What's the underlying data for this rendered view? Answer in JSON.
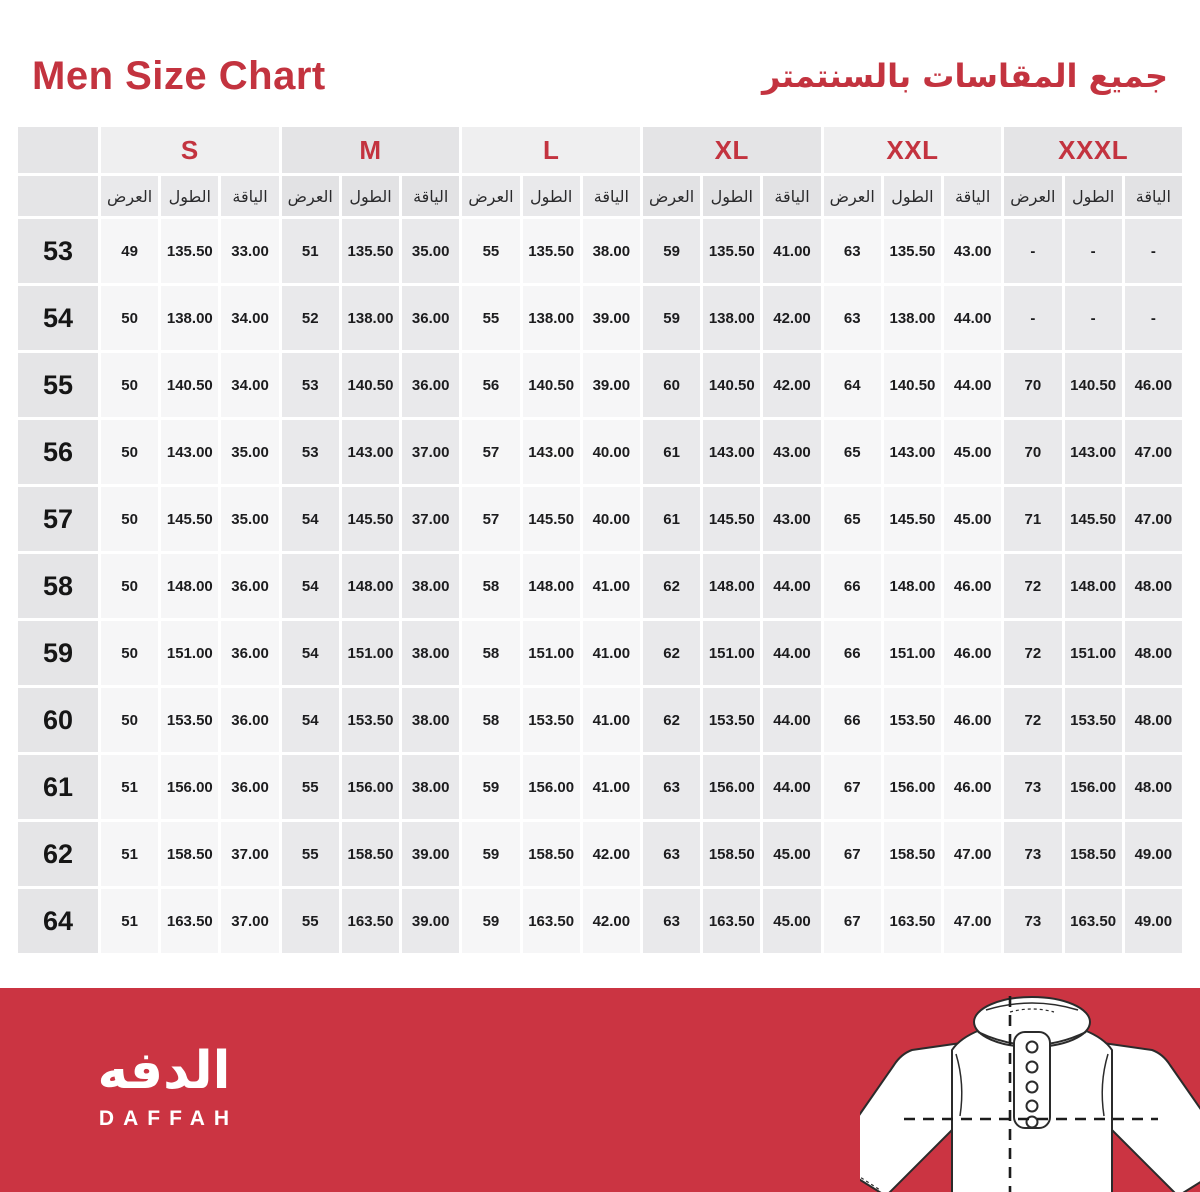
{
  "header": {
    "title_en": "Men Size Chart",
    "title_ar": "جميع المقاسات بالسنتمتر"
  },
  "colors": {
    "accent_red": "#C3333F",
    "footer_red": "#CB3442",
    "label_bg": "#E5E5E7",
    "head_light_bg": "#EFEFF0",
    "head_dark_bg": "#E4E4E6",
    "subhead_light_bg": "#E9E9EB",
    "subhead_dark_bg": "#E2E2E4",
    "cell_light_bg": "#F6F6F7",
    "cell_dark_bg": "#E9E9EB",
    "text_dark": "#1C1C1E"
  },
  "chart_data": {
    "type": "table",
    "title": "Men Size Chart",
    "units_note_ar": "جميع المقاسات بالسنتمتر",
    "size_groups": [
      "S",
      "M",
      "L",
      "XL",
      "XXL",
      "XXXL"
    ],
    "sub_headers": [
      "العرض",
      "الطول",
      "الياقة"
    ],
    "row_labels": [
      "53",
      "54",
      "55",
      "56",
      "57",
      "58",
      "59",
      "60",
      "61",
      "62",
      "64"
    ],
    "rows": [
      {
        "label": "53",
        "cells": [
          [
            "49",
            "135.50",
            "33.00"
          ],
          [
            "51",
            "135.50",
            "35.00"
          ],
          [
            "55",
            "135.50",
            "38.00"
          ],
          [
            "59",
            "135.50",
            "41.00"
          ],
          [
            "63",
            "135.50",
            "43.00"
          ],
          [
            "-",
            "-",
            "-"
          ]
        ]
      },
      {
        "label": "54",
        "cells": [
          [
            "50",
            "138.00",
            "34.00"
          ],
          [
            "52",
            "138.00",
            "36.00"
          ],
          [
            "55",
            "138.00",
            "39.00"
          ],
          [
            "59",
            "138.00",
            "42.00"
          ],
          [
            "63",
            "138.00",
            "44.00"
          ],
          [
            "-",
            "-",
            "-"
          ]
        ]
      },
      {
        "label": "55",
        "cells": [
          [
            "50",
            "140.50",
            "34.00"
          ],
          [
            "53",
            "140.50",
            "36.00"
          ],
          [
            "56",
            "140.50",
            "39.00"
          ],
          [
            "60",
            "140.50",
            "42.00"
          ],
          [
            "64",
            "140.50",
            "44.00"
          ],
          [
            "70",
            "140.50",
            "46.00"
          ]
        ]
      },
      {
        "label": "56",
        "cells": [
          [
            "50",
            "143.00",
            "35.00"
          ],
          [
            "53",
            "143.00",
            "37.00"
          ],
          [
            "57",
            "143.00",
            "40.00"
          ],
          [
            "61",
            "143.00",
            "43.00"
          ],
          [
            "65",
            "143.00",
            "45.00"
          ],
          [
            "70",
            "143.00",
            "47.00"
          ]
        ]
      },
      {
        "label": "57",
        "cells": [
          [
            "50",
            "145.50",
            "35.00"
          ],
          [
            "54",
            "145.50",
            "37.00"
          ],
          [
            "57",
            "145.50",
            "40.00"
          ],
          [
            "61",
            "145.50",
            "43.00"
          ],
          [
            "65",
            "145.50",
            "45.00"
          ],
          [
            "71",
            "145.50",
            "47.00"
          ]
        ]
      },
      {
        "label": "58",
        "cells": [
          [
            "50",
            "148.00",
            "36.00"
          ],
          [
            "54",
            "148.00",
            "38.00"
          ],
          [
            "58",
            "148.00",
            "41.00"
          ],
          [
            "62",
            "148.00",
            "44.00"
          ],
          [
            "66",
            "148.00",
            "46.00"
          ],
          [
            "72",
            "148.00",
            "48.00"
          ]
        ]
      },
      {
        "label": "59",
        "cells": [
          [
            "50",
            "151.00",
            "36.00"
          ],
          [
            "54",
            "151.00",
            "38.00"
          ],
          [
            "58",
            "151.00",
            "41.00"
          ],
          [
            "62",
            "151.00",
            "44.00"
          ],
          [
            "66",
            "151.00",
            "46.00"
          ],
          [
            "72",
            "151.00",
            "48.00"
          ]
        ]
      },
      {
        "label": "60",
        "cells": [
          [
            "50",
            "153.50",
            "36.00"
          ],
          [
            "54",
            "153.50",
            "38.00"
          ],
          [
            "58",
            "153.50",
            "41.00"
          ],
          [
            "62",
            "153.50",
            "44.00"
          ],
          [
            "66",
            "153.50",
            "46.00"
          ],
          [
            "72",
            "153.50",
            "48.00"
          ]
        ]
      },
      {
        "label": "61",
        "cells": [
          [
            "51",
            "156.00",
            "36.00"
          ],
          [
            "55",
            "156.00",
            "38.00"
          ],
          [
            "59",
            "156.00",
            "41.00"
          ],
          [
            "63",
            "156.00",
            "44.00"
          ],
          [
            "67",
            "156.00",
            "46.00"
          ],
          [
            "73",
            "156.00",
            "48.00"
          ]
        ]
      },
      {
        "label": "62",
        "cells": [
          [
            "51",
            "158.50",
            "37.00"
          ],
          [
            "55",
            "158.50",
            "39.00"
          ],
          [
            "59",
            "158.50",
            "42.00"
          ],
          [
            "63",
            "158.50",
            "45.00"
          ],
          [
            "67",
            "158.50",
            "47.00"
          ],
          [
            "73",
            "158.50",
            "49.00"
          ]
        ]
      },
      {
        "label": "64",
        "cells": [
          [
            "51",
            "163.50",
            "37.00"
          ],
          [
            "55",
            "163.50",
            "39.00"
          ],
          [
            "59",
            "163.50",
            "42.00"
          ],
          [
            "63",
            "163.50",
            "45.00"
          ],
          [
            "67",
            "163.50",
            "47.00"
          ],
          [
            "73",
            "163.50",
            "49.00"
          ]
        ]
      }
    ]
  },
  "footer": {
    "logo_ar": "الدفه",
    "logo_en": "DAFFAH",
    "illustration": "thobe-garment-line-drawing"
  }
}
